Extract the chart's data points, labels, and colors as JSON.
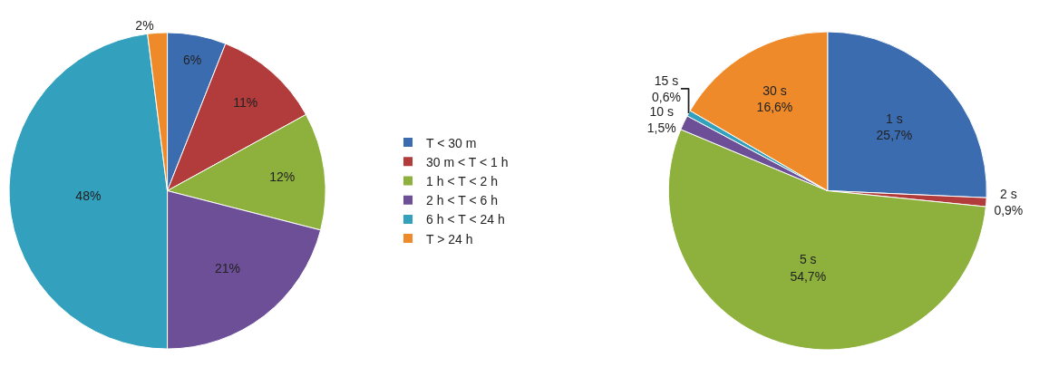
{
  "chart_data": [
    {
      "type": "pie",
      "categories": [
        "T < 30 m",
        "30 m < T < 1 h",
        "1 h < T < 2 h",
        "2 h < T < 6 h",
        "6 h < T < 24 h",
        "T > 24 h"
      ],
      "values": [
        6,
        11,
        12,
        21,
        48,
        2
      ],
      "colors": [
        "#3b6cb0",
        "#b23b3b",
        "#8db13c",
        "#6d4f98",
        "#33a0bd",
        "#ee8a2a"
      ],
      "value_labels": [
        "6%",
        "11%",
        "12%",
        "21%",
        "48%",
        "2%"
      ],
      "legend": "right"
    },
    {
      "type": "pie",
      "categories": [
        "1 s",
        "2 s",
        "5 s",
        "10 s",
        "15 s",
        "30 s"
      ],
      "values": [
        25.7,
        0.9,
        54.7,
        1.5,
        0.6,
        16.6
      ],
      "colors": [
        "#3b6cb0",
        "#b23b3b",
        "#8db13c",
        "#6d4f98",
        "#33a0bd",
        "#ee8a2a"
      ],
      "value_labels": [
        "25,7%",
        "0,9%",
        "54,7%",
        "1,5%",
        "0,6%",
        "16,6%"
      ],
      "legend": false
    }
  ]
}
